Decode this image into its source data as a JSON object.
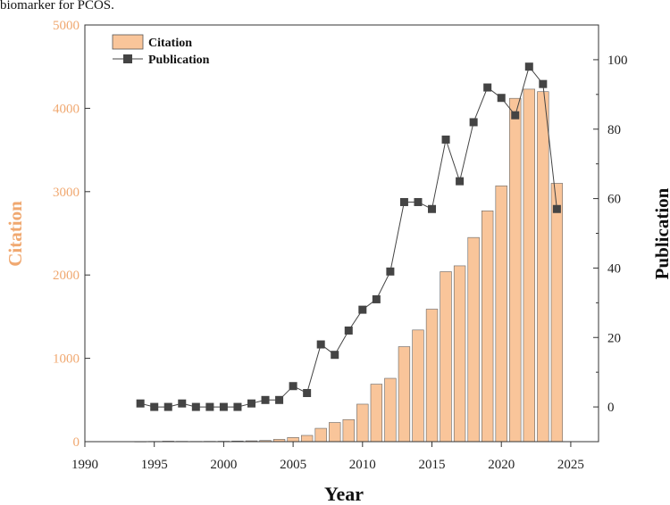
{
  "caption_fragment": "biomarker for PCOS.",
  "colors": {
    "citation_bar": "#f9c59a",
    "citation_axis": "#f0a870",
    "publication_line": "#444444",
    "axis": "#333333"
  },
  "chart_data": {
    "type": "bar",
    "xlabel": "Year",
    "ylabel_left": "Citation",
    "ylabel_right": "Publication",
    "xlim": [
      1990,
      2027
    ],
    "ylim_left": [
      0,
      5000
    ],
    "ylim_right": [
      -10,
      110
    ],
    "x_ticks": [
      1990,
      1995,
      2000,
      2005,
      2010,
      2015,
      2020,
      2025
    ],
    "y_ticks_left": [
      0,
      1000,
      2000,
      3000,
      4000,
      5000
    ],
    "y_ticks_right": [
      0,
      20,
      40,
      60,
      80,
      100
    ],
    "legend": {
      "position": "top-left",
      "citation": "Citation",
      "publication": "Publication"
    },
    "series": [
      {
        "name": "Citation",
        "type": "bar",
        "axis": "left",
        "x": [
          1994,
          1995,
          1996,
          1997,
          1998,
          1999,
          2000,
          2001,
          2002,
          2003,
          2004,
          2005,
          2006,
          2007,
          2008,
          2009,
          2010,
          2011,
          2012,
          2013,
          2014,
          2015,
          2016,
          2017,
          2018,
          2019,
          2020,
          2021,
          2022,
          2023,
          2024
        ],
        "values": [
          2,
          3,
          6,
          4,
          3,
          4,
          5,
          8,
          10,
          14,
          28,
          50,
          75,
          160,
          230,
          265,
          450,
          690,
          760,
          1140,
          1340,
          1590,
          2040,
          2110,
          2450,
          2770,
          3070,
          4120,
          4230,
          4200,
          3100
        ]
      },
      {
        "name": "Publication",
        "type": "line",
        "axis": "right",
        "x": [
          1994,
          1995,
          1996,
          1997,
          1998,
          1999,
          2000,
          2001,
          2002,
          2003,
          2004,
          2005,
          2006,
          2007,
          2008,
          2009,
          2010,
          2011,
          2012,
          2013,
          2014,
          2015,
          2016,
          2017,
          2018,
          2019,
          2020,
          2021,
          2022,
          2023,
          2024
        ],
        "values": [
          1,
          0,
          0,
          1,
          0,
          0,
          0,
          0,
          1,
          2,
          2,
          6,
          4,
          18,
          15,
          22,
          28,
          31,
          39,
          59,
          59,
          57,
          77,
          65,
          82,
          92,
          89,
          84,
          98,
          93,
          57
        ]
      }
    ]
  }
}
